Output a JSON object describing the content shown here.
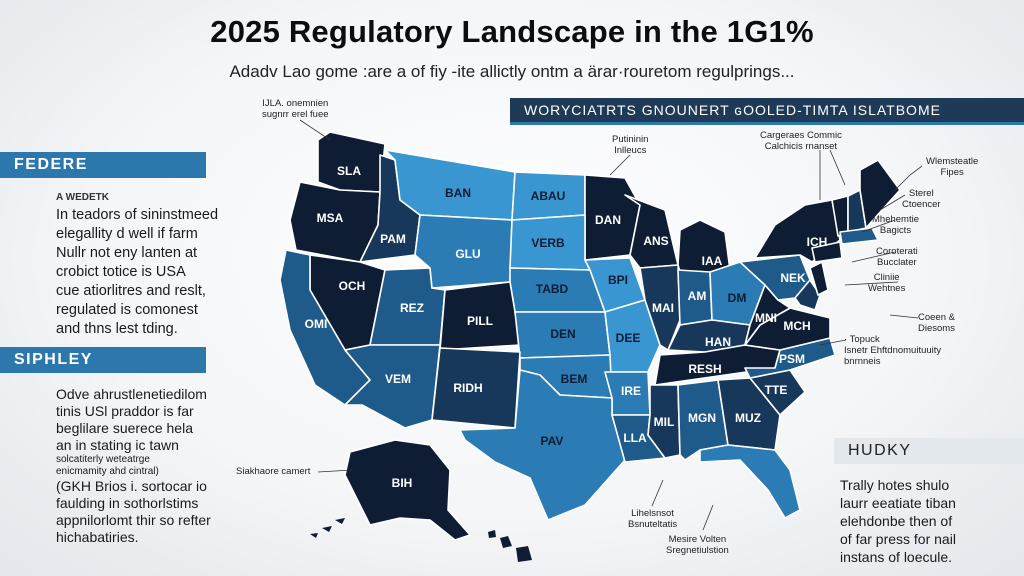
{
  "title": "2025 Regulatory Landscape in the 1G1%",
  "subtitle": "Adadv Lao gome :are a of fiy -ite allictly ontm a ärar·rouretom regulprings...",
  "bands": {
    "federal": "FEDERE",
    "sipley": "SIPHLEY",
    "top": "WORYCIATRTS GNOUNERT ɢOOLED-TIMTA ISLATBOME",
    "hudky": "HUDKY"
  },
  "federal_section": {
    "heading": "A WEDETK",
    "lines": [
      "In teadors of sininstmeed",
      "elegallity d well if farm",
      "Nullr not eny lanten at",
      "crobict totice is USA",
      "cue atiorlitres and reslt,",
      "regulated is comonest",
      "and thns lest tding."
    ]
  },
  "sipley_section": {
    "lines": [
      "Odve ahrustlenetiedilom",
      "tinis USl praddor is far",
      "beglilare suerece hela",
      "an in stating ic tawn"
    ],
    "small_lines": [
      "solcatiterly weteatrge",
      "enicmamity ahd cintral)"
    ],
    "lines2": [
      "(GKH Brios i. sortocar io",
      "faulding in sothorlstims",
      "appnilorlomt thir so refter",
      "hichabatiries."
    ]
  },
  "hudky_section": {
    "lines": [
      "Trally hotes shulo",
      "laurr eeatiate tiban",
      "elehdonbe then of",
      "of far press for nail",
      "instans of loecule."
    ]
  },
  "callouts": {
    "top_left": [
      "IJLA. onemnien",
      "sugnrr erel fuee"
    ],
    "top_mid": [
      "Putininin",
      "Inlleucs"
    ],
    "top_right": [
      "Cargeraes Commic",
      "Calchicis rnanset"
    ],
    "ne_1": [
      "Wlemsteatle",
      "Fipes"
    ],
    "ne_2": [
      "Sterel",
      "Ctoencer"
    ],
    "ne_3": [
      "Mhehemtie",
      "Bagicts"
    ],
    "ne_4": [
      "Coroterati",
      "Bucclater"
    ],
    "ne_5": [
      "Cliniie",
      "Wehtnes"
    ],
    "ne_6": [
      "Coeen &",
      "Diesoms"
    ],
    "se_1": [
      "· Topuck",
      "Isnetr Ehftdnomuituuity",
      "bnrnneis"
    ],
    "alaska": [
      "Siakhaore camert"
    ],
    "bottom_1": [
      "Lihelsnsot",
      "Bsnuteltatis"
    ],
    "bottom_2": [
      "Mesire Volten",
      "Sregnetiulstion"
    ]
  },
  "map_labels": {
    "WA": "SLA",
    "OR": "MSA",
    "ID": "PAM",
    "MT": "BAN",
    "ND": "ABAU",
    "MN": "DAN",
    "NV": "OCH",
    "CA": "OMI",
    "UT": "REZ",
    "WY": "GLU",
    "SD": "VERB",
    "NE": "TABD",
    "IA": "BPI",
    "WI": "ANS",
    "MI": "IAA",
    "CO": "PILL",
    "KS": "DEN",
    "MO": "DEE",
    "IL": "MAI",
    "IN": "AM",
    "OH": "DM",
    "AZ": "VEM",
    "NM": "RIDH",
    "OK": "BEM",
    "AR": "IRE",
    "TN": "RESH",
    "KY": "HAN",
    "WV": "MNI",
    "VA": "MCH",
    "NC": "PSM",
    "SC": "TTE",
    "GA": "MUZ",
    "AL": "MGN",
    "MS": "MIL",
    "LA": "LLA",
    "TX": "PAV",
    "NY": "NEK",
    "PA": "ICH",
    "AK": "BIH"
  },
  "colors": {
    "navy": "#0e1d33",
    "dark_blue": "#17385a",
    "mid_blue": "#1e5a8a",
    "blue": "#2b7bb4",
    "light_blue": "#3a96d0",
    "band_blue": "#2c78ad"
  }
}
